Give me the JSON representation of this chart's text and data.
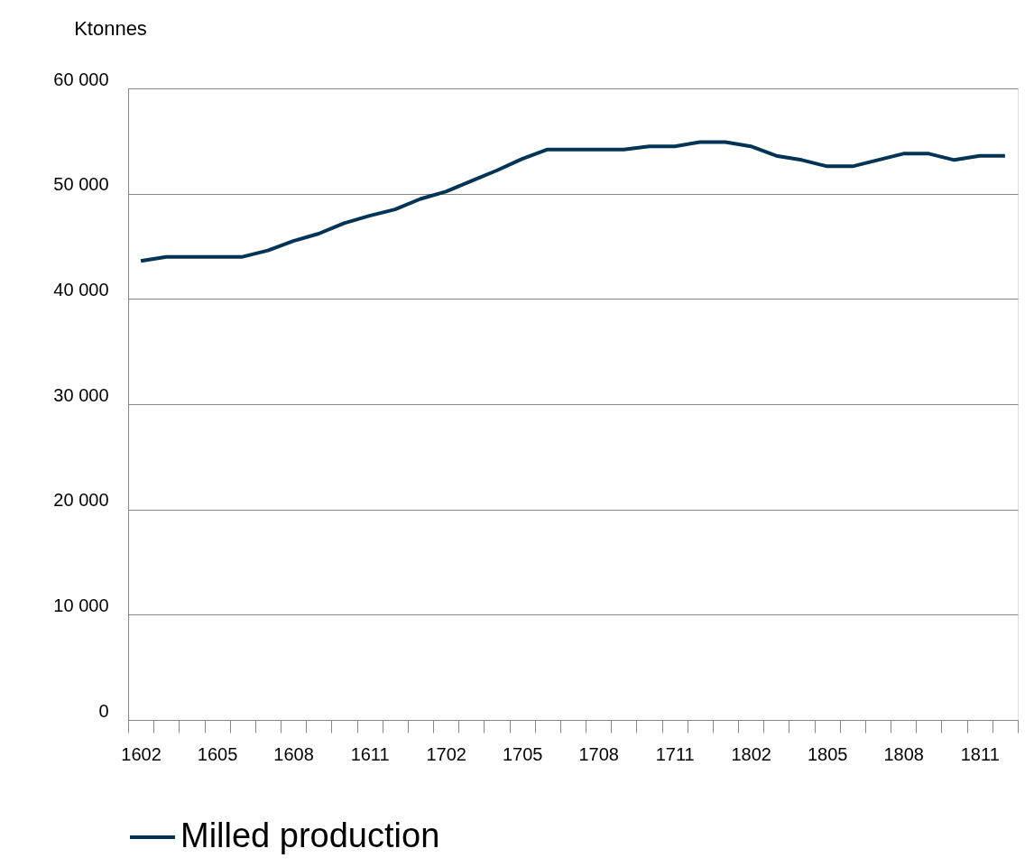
{
  "chart_data": {
    "type": "line",
    "ylabel": "Ktonnes",
    "categories": [
      "1602",
      null,
      null,
      "1605",
      null,
      null,
      "1608",
      null,
      null,
      "1611",
      null,
      null,
      "1702",
      null,
      null,
      "1705",
      null,
      null,
      "1708",
      null,
      null,
      "1711",
      null,
      null,
      "1802",
      null,
      null,
      "1805",
      null,
      null,
      "1808",
      null,
      null,
      "1811",
      null
    ],
    "series": [
      {
        "name": "Milled production",
        "color": "#003355",
        "values": [
          43600,
          44000,
          44000,
          44000,
          44000,
          44600,
          45500,
          46200,
          47200,
          47900,
          48500,
          49500,
          50200,
          51200,
          52200,
          53300,
          54200,
          54200,
          54200,
          54200,
          54500,
          54500,
          54900,
          54900,
          54500,
          53600,
          53200,
          52600,
          52600,
          53200,
          53800,
          53800,
          53200,
          53600,
          53600
        ]
      }
    ],
    "ylim": [
      0,
      60000
    ],
    "yticks": [
      {
        "value": 0,
        "label": "0"
      },
      {
        "value": 10000,
        "label": "10 000"
      },
      {
        "value": 20000,
        "label": "20 000"
      },
      {
        "value": 30000,
        "label": "30 000"
      },
      {
        "value": 40000,
        "label": "40 000"
      },
      {
        "value": 50000,
        "label": "50 000"
      },
      {
        "value": 60000,
        "label": "60 000"
      }
    ],
    "grid": "y",
    "legend": "bottom",
    "marker": "none",
    "line_style": "solid"
  }
}
